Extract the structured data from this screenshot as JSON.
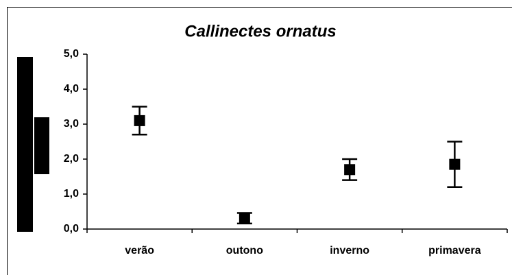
{
  "chart_data": {
    "type": "errorpoint",
    "title": "Callinectes ornatus",
    "categories": [
      "verão",
      "outono",
      "inverno",
      "primavera"
    ],
    "values": [
      3.1,
      0.31,
      1.7,
      1.85
    ],
    "errors": [
      0.4,
      0.15,
      0.3,
      0.65
    ],
    "color": "#000000",
    "ylim": [
      0,
      5
    ],
    "yticks": [
      {
        "value": 0,
        "label": "0,0"
      },
      {
        "value": 1,
        "label": "1,0"
      },
      {
        "value": 2,
        "label": "2,0"
      },
      {
        "value": 3,
        "label": "3,0"
      },
      {
        "value": 4,
        "label": "4,0"
      },
      {
        "value": 5,
        "label": "5,0"
      }
    ]
  }
}
